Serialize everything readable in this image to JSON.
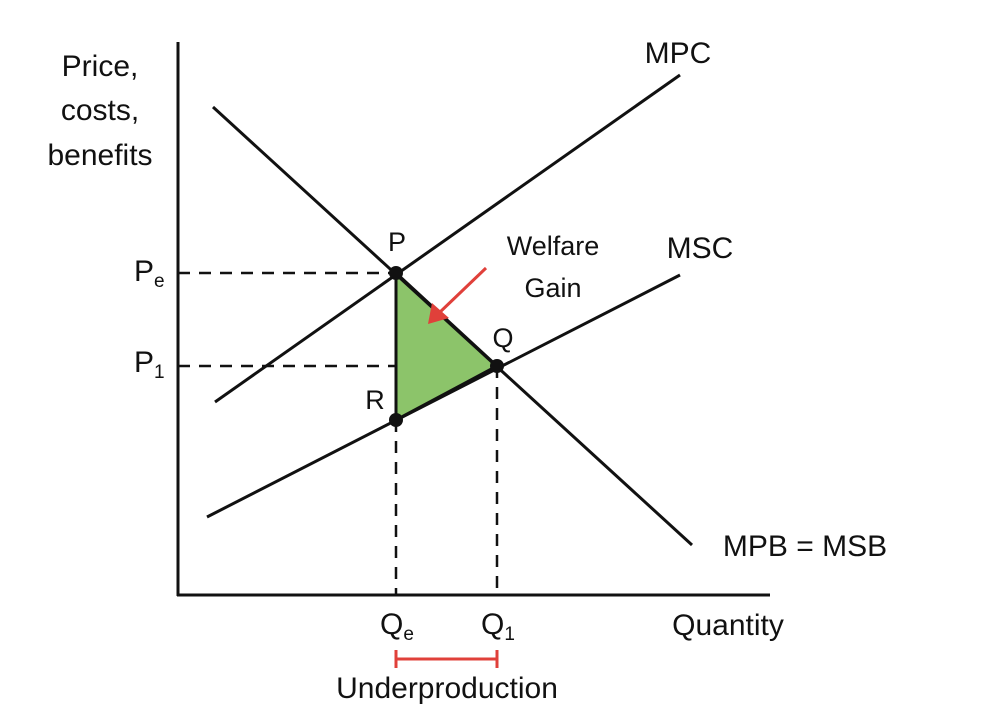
{
  "axes": {
    "y_label": [
      "Price,",
      "costs,",
      "benefits"
    ],
    "x_label": "Quantity"
  },
  "curves": {
    "mpc": "MPC",
    "msc": "MSC",
    "demand": "MPB = MSB"
  },
  "prices": [
    {
      "base": "P",
      "sub": "e"
    },
    {
      "base": "P",
      "sub": "1"
    }
  ],
  "quantities": [
    {
      "base": "Q",
      "sub": "e"
    },
    {
      "base": "Q",
      "sub": "1"
    }
  ],
  "points": {
    "p": "P",
    "q": "Q",
    "r": "R"
  },
  "welfare_label": [
    "Welfare",
    "Gain"
  ],
  "gap_label": "Underproduction"
}
